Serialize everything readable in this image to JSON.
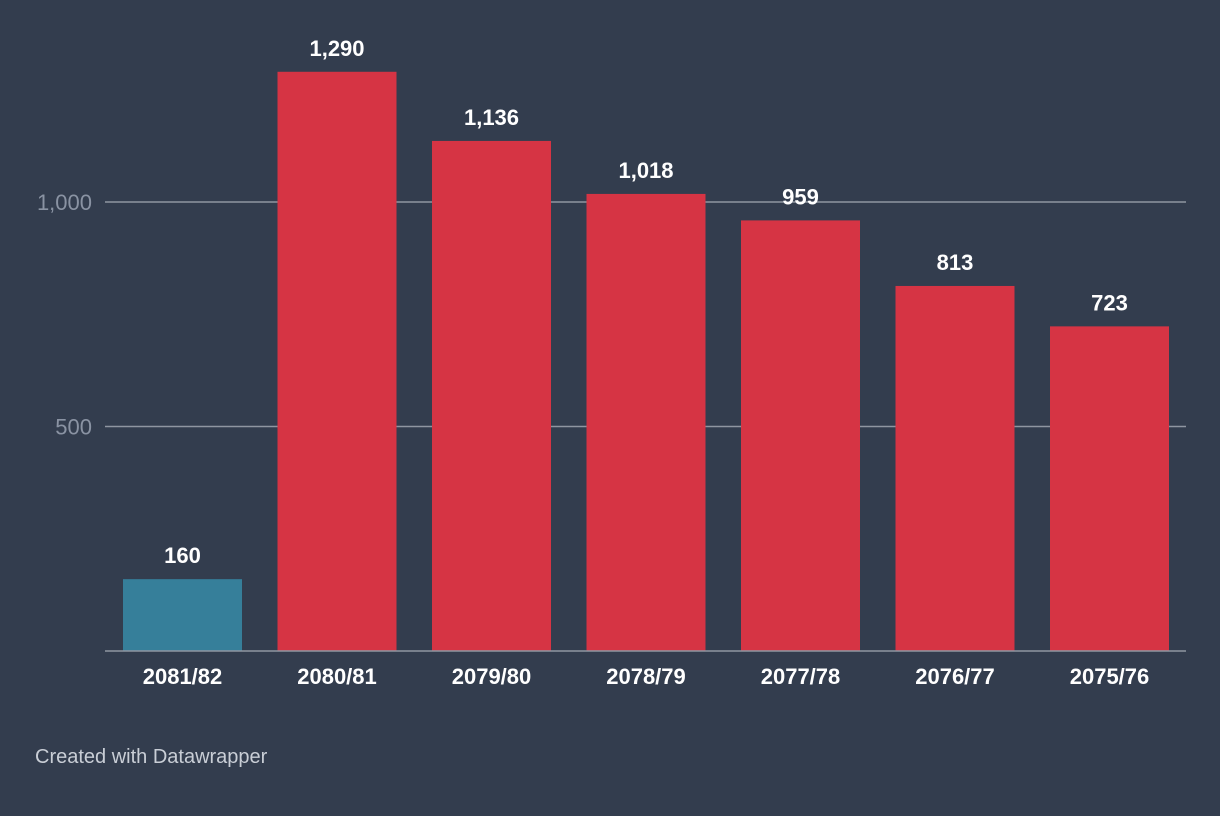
{
  "colors": {
    "background": "#333d4e",
    "highlight_bar": "#367f9a",
    "bar": "#d63444",
    "gridline": "#8f96a1",
    "tick_text": "#8a93a3",
    "label_text": "#ffffff",
    "credit_text": "#c9ced6"
  },
  "chart_data": {
    "type": "bar",
    "categories": [
      "2081/82",
      "2080/81",
      "2079/80",
      "2078/79",
      "2077/78",
      "2076/77",
      "2075/76"
    ],
    "values": [
      160,
      1290,
      1136,
      1018,
      959,
      813,
      723
    ],
    "value_labels": [
      "160",
      "1,290",
      "1,136",
      "1,018",
      "959",
      "813",
      "723"
    ],
    "highlight_index": 0,
    "title": "",
    "xlabel": "",
    "ylabel": "",
    "ylim": [
      0,
      1300
    ],
    "yticks": [
      500,
      1000
    ],
    "ytick_labels": [
      "500",
      "1,000"
    ],
    "grid": true,
    "legend": "none"
  },
  "credit": "Created with Datawrapper"
}
